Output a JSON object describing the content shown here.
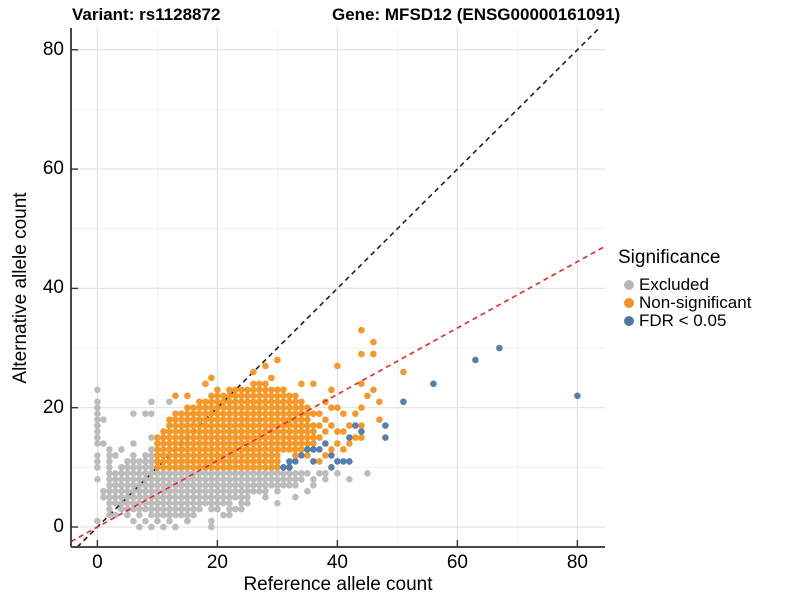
{
  "title": {
    "variant": "Variant: rs1128872",
    "gene": "Gene: MFSD12 (ENSG00000161091)"
  },
  "axes": {
    "x": {
      "label": "Reference allele count",
      "ticks": [
        0,
        20,
        40,
        60,
        80
      ],
      "minor_ticks": [
        10,
        30,
        50,
        70
      ]
    },
    "y": {
      "label": "Alternative allele count",
      "ticks": [
        0,
        20,
        40,
        60,
        80
      ],
      "minor_ticks": [
        10,
        30,
        50,
        70
      ]
    }
  },
  "legend": {
    "title": "Significance",
    "items": [
      {
        "label": "Excluded",
        "color": "#B8B8B8"
      },
      {
        "label": "Non-significant",
        "color": "#F5941D"
      },
      {
        "label": "FDR < 0.05",
        "color": "#4C78A8"
      }
    ]
  },
  "colors": {
    "excluded": "#B8B8B8",
    "non_significant": "#F5941D",
    "fdr_significant": "#4C78A8",
    "identity_line": "#1f1f1f",
    "ratio_line": "#ee2421",
    "grid_major": "#e3e3e3",
    "grid_minor": "#f0f0f0",
    "axis_line": "#474747"
  },
  "chart_data": {
    "type": "scatter",
    "title": "Variant: rs1128872 / Gene: MFSD12 (ENSG00000161091)",
    "xlabel": "Reference allele count",
    "ylabel": "Alternative allele count",
    "xlim": [
      -4.4,
      84.6
    ],
    "ylim": [
      -3.35,
      83.65
    ],
    "grid": true,
    "legend_position": "right",
    "reference_lines": [
      {
        "name": "identity",
        "slope": 1,
        "intercept": 0,
        "style": "dashed",
        "color": "#1f1f1f",
        "layer": "below-points"
      },
      {
        "name": "expected-ratio",
        "slope": 0.556,
        "intercept": 0,
        "style": "dashed",
        "color": "#ee2421",
        "layer": "above-points"
      }
    ],
    "series": [
      {
        "name": "Excluded",
        "color": "#B8B8B8",
        "columns": [
          [
            0,
            14,
            21
          ],
          [
            2,
            3,
            13
          ],
          [
            3,
            4,
            9
          ],
          [
            4,
            3,
            10
          ],
          [
            5,
            2,
            11
          ],
          [
            6,
            3,
            12
          ],
          [
            7,
            2,
            11
          ],
          [
            8,
            3,
            12
          ],
          [
            9,
            2,
            13
          ],
          [
            10,
            1,
            9
          ],
          [
            11,
            2,
            9
          ],
          [
            12,
            1,
            9
          ],
          [
            13,
            2,
            9
          ],
          [
            14,
            2,
            9
          ],
          [
            15,
            1,
            9
          ],
          [
            16,
            2,
            9
          ],
          [
            17,
            3,
            9
          ],
          [
            18,
            4,
            9
          ],
          [
            19,
            3,
            9
          ],
          [
            20,
            3,
            9
          ],
          [
            21,
            4,
            9
          ],
          [
            22,
            4,
            9
          ],
          [
            23,
            5,
            9
          ],
          [
            24,
            5,
            9
          ],
          [
            25,
            5,
            9
          ],
          [
            26,
            6,
            9
          ],
          [
            27,
            6,
            9
          ],
          [
            28,
            5,
            9
          ],
          [
            29,
            7,
            9
          ],
          [
            30,
            6,
            9
          ],
          [
            31,
            7,
            9
          ],
          [
            32,
            7,
            9
          ],
          [
            33,
            7,
            9
          ]
        ],
        "points": [
          [
            0,
            1
          ],
          [
            0,
            8
          ],
          [
            0,
            10
          ],
          [
            0,
            11
          ],
          [
            0,
            12
          ],
          [
            0,
            23
          ],
          [
            1,
            5
          ],
          [
            1,
            6
          ],
          [
            1,
            14
          ],
          [
            1,
            18
          ],
          [
            2,
            2
          ],
          [
            3,
            2
          ],
          [
            3,
            12
          ],
          [
            4,
            13
          ],
          [
            6,
            1
          ],
          [
            6,
            14
          ],
          [
            6,
            19
          ],
          [
            7,
            0
          ],
          [
            8,
            1
          ],
          [
            8,
            19
          ],
          [
            9,
            0
          ],
          [
            9,
            15
          ],
          [
            9,
            19
          ],
          [
            9,
            21
          ],
          [
            11,
            0
          ],
          [
            12,
            21
          ],
          [
            13,
            0
          ],
          [
            15,
            1
          ],
          [
            19,
            0
          ],
          [
            19,
            1
          ],
          [
            21,
            2
          ],
          [
            22,
            2
          ],
          [
            22,
            3
          ],
          [
            23,
            3
          ],
          [
            24,
            3
          ],
          [
            24,
            4
          ],
          [
            25,
            4
          ],
          [
            30,
            4
          ],
          [
            33,
            5
          ],
          [
            34,
            8
          ],
          [
            34,
            9
          ],
          [
            35,
            6
          ],
          [
            35,
            9
          ],
          [
            36,
            7
          ],
          [
            36,
            8
          ],
          [
            37,
            9
          ],
          [
            38,
            8
          ],
          [
            38,
            9
          ],
          [
            40,
            9
          ],
          [
            42,
            8
          ],
          [
            45,
            9
          ]
        ]
      },
      {
        "name": "Non-significant",
        "color": "#F5941D",
        "columns": [
          [
            10,
            10,
            15
          ],
          [
            11,
            10,
            16
          ],
          [
            12,
            10,
            18
          ],
          [
            13,
            10,
            19
          ],
          [
            14,
            10,
            19
          ],
          [
            15,
            10,
            20
          ],
          [
            16,
            10,
            20
          ],
          [
            17,
            10,
            21
          ],
          [
            18,
            10,
            21
          ],
          [
            19,
            10,
            22
          ],
          [
            20,
            10,
            22
          ],
          [
            21,
            10,
            22
          ],
          [
            22,
            10,
            23
          ],
          [
            23,
            10,
            23
          ],
          [
            24,
            10,
            23
          ],
          [
            25,
            10,
            23
          ],
          [
            26,
            10,
            24
          ],
          [
            27,
            10,
            24
          ],
          [
            28,
            10,
            24
          ],
          [
            29,
            10,
            23
          ],
          [
            30,
            10,
            23
          ],
          [
            31,
            13,
            22
          ],
          [
            32,
            13,
            22
          ],
          [
            33,
            12,
            21
          ],
          [
            34,
            13,
            21
          ],
          [
            35,
            14,
            20
          ],
          [
            36,
            14,
            17
          ]
        ],
        "points": [
          [
            32,
            10
          ],
          [
            33,
            22
          ],
          [
            34,
            24
          ],
          [
            35,
            12
          ],
          [
            36,
            19
          ],
          [
            36,
            24
          ],
          [
            37,
            11
          ],
          [
            37,
            15
          ],
          [
            37,
            17
          ],
          [
            37,
            19
          ],
          [
            38,
            12
          ],
          [
            38,
            16
          ],
          [
            38,
            18
          ],
          [
            38,
            21
          ],
          [
            39,
            13
          ],
          [
            39,
            17
          ],
          [
            39,
            20
          ],
          [
            39,
            23
          ],
          [
            40,
            14
          ],
          [
            40,
            16
          ],
          [
            40,
            20
          ],
          [
            40,
            27
          ],
          [
            41,
            13
          ],
          [
            41,
            16
          ],
          [
            41,
            19
          ],
          [
            42,
            14
          ],
          [
            42,
            17
          ],
          [
            43,
            15
          ],
          [
            43,
            19
          ],
          [
            44,
            15
          ],
          [
            44,
            17
          ],
          [
            44,
            20
          ],
          [
            44,
            24
          ],
          [
            44,
            29
          ],
          [
            44,
            33
          ],
          [
            45,
            22
          ],
          [
            46,
            23
          ],
          [
            46,
            29
          ],
          [
            46,
            31
          ],
          [
            47,
            18
          ],
          [
            47,
            21
          ],
          [
            51,
            26
          ],
          [
            13,
            22
          ],
          [
            15,
            22
          ],
          [
            18,
            24
          ],
          [
            19,
            25
          ],
          [
            20,
            23
          ],
          [
            26,
            26
          ],
          [
            28,
            27
          ],
          [
            29,
            25
          ],
          [
            30,
            28
          ],
          [
            31,
            23
          ]
        ]
      },
      {
        "name": "FDR < 0.05",
        "color": "#4C78A8",
        "columns": [],
        "points": [
          [
            31,
            10
          ],
          [
            32,
            10
          ],
          [
            32,
            11
          ],
          [
            33,
            11
          ],
          [
            34,
            12
          ],
          [
            35,
            13
          ],
          [
            36,
            11
          ],
          [
            36,
            13
          ],
          [
            37,
            13
          ],
          [
            38,
            14
          ],
          [
            39,
            10
          ],
          [
            39,
            12
          ],
          [
            40,
            11
          ],
          [
            41,
            11
          ],
          [
            42,
            11
          ],
          [
            42,
            15
          ],
          [
            43,
            17
          ],
          [
            44,
            16
          ],
          [
            48,
            15
          ],
          [
            48,
            17
          ],
          [
            51,
            21
          ],
          [
            56,
            24
          ],
          [
            63,
            28
          ],
          [
            67,
            30
          ],
          [
            80,
            22
          ]
        ]
      }
    ]
  }
}
